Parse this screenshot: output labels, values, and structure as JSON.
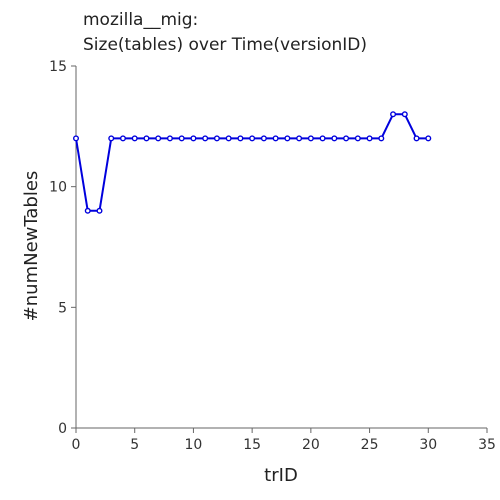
{
  "chart_data": {
    "type": "line",
    "title_lines": [
      "mozilla__mig:",
      "Size(tables) over Time(versionID)"
    ],
    "xlabel": "trID",
    "ylabel": "#numNewTables",
    "xlim": [
      0,
      35
    ],
    "ylim": [
      0,
      15
    ],
    "xticks": [
      0,
      5,
      10,
      15,
      20,
      25,
      30,
      35
    ],
    "yticks": [
      0,
      5,
      10,
      15
    ],
    "grid": false,
    "x": [
      0,
      1,
      2,
      3,
      4,
      5,
      6,
      7,
      8,
      9,
      10,
      11,
      12,
      13,
      14,
      15,
      16,
      17,
      18,
      19,
      20,
      21,
      22,
      23,
      24,
      25,
      26,
      27,
      28,
      29,
      30
    ],
    "series": [
      {
        "values": [
          12,
          9,
          9,
          12,
          12,
          12,
          12,
          12,
          12,
          12,
          12,
          12,
          12,
          12,
          12,
          12,
          12,
          12,
          12,
          12,
          12,
          12,
          12,
          12,
          12,
          12,
          12,
          13,
          13,
          12,
          12
        ],
        "color": "#0000dd"
      }
    ]
  }
}
